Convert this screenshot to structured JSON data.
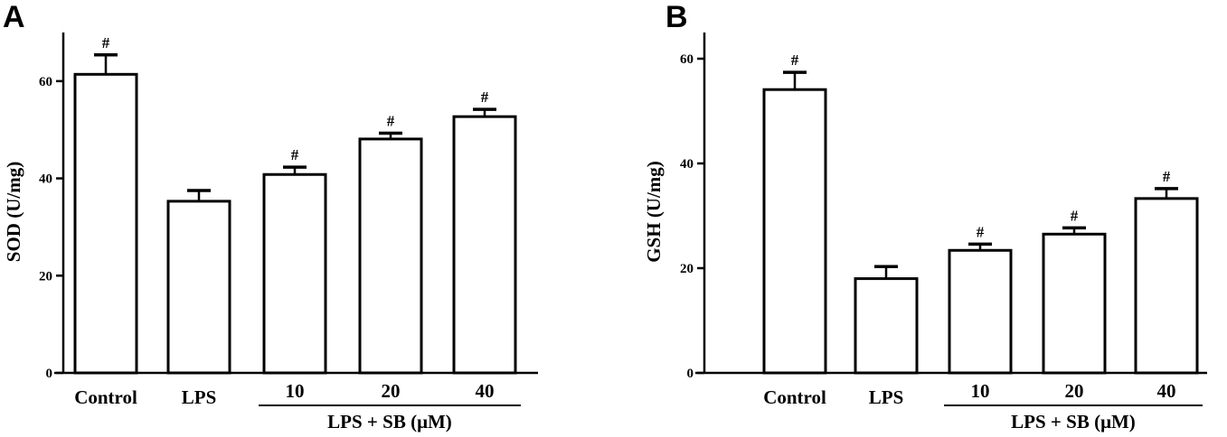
{
  "chart_data": [
    {
      "type": "bar",
      "panel_label": "A",
      "categories": [
        "Control",
        "LPS",
        "10",
        "20",
        "40"
      ],
      "group_label": "LPS + SB (μM)",
      "values": [
        61.4,
        35.3,
        40.8,
        48.1,
        52.7
      ],
      "errors": [
        4.0,
        2.2,
        1.5,
        1.2,
        1.5
      ],
      "significance": [
        "#",
        "",
        "#",
        "#",
        "#"
      ],
      "ylabel": "SOD (U/mg)",
      "xlabel": "",
      "ylim": [
        0,
        70
      ],
      "yticks": [
        "0",
        "20",
        "40",
        "60"
      ],
      "grid": false
    },
    {
      "type": "bar",
      "panel_label": "B",
      "categories": [
        "Control",
        "LPS",
        "10",
        "20",
        "40"
      ],
      "group_label": "LPS + SB (μM)",
      "values": [
        54.1,
        18.0,
        23.4,
        26.5,
        33.3
      ],
      "errors": [
        3.3,
        2.3,
        1.2,
        1.2,
        1.9
      ],
      "significance": [
        "#",
        "",
        "#",
        "#",
        "#"
      ],
      "ylabel": "GSH (U/mg)",
      "xlabel": "",
      "ylim": [
        0,
        65
      ],
      "yticks": [
        "0",
        "20",
        "40",
        "60"
      ],
      "grid": false
    }
  ]
}
